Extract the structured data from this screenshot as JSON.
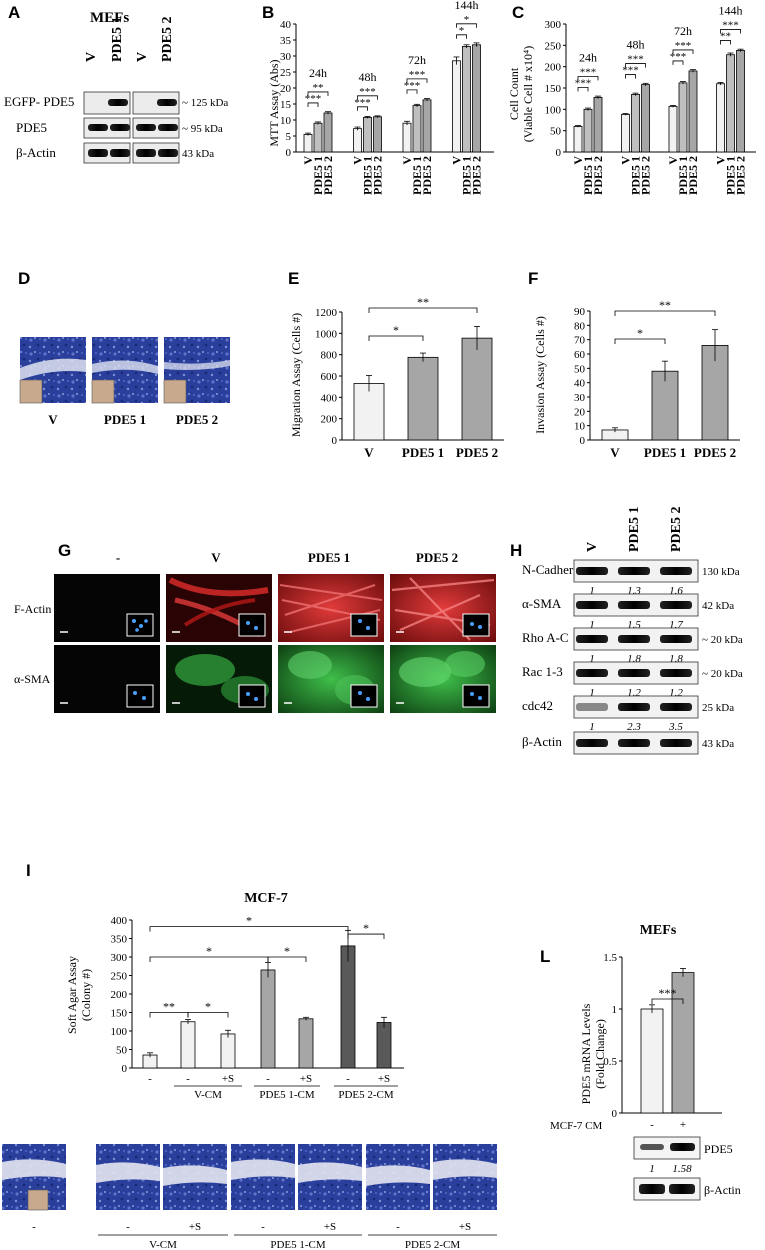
{
  "panels": {
    "A": {
      "letter": "A",
      "title": "MEFs",
      "lanes": [
        "V",
        "PDE5 1",
        "V",
        "PDE5 2"
      ],
      "rows": [
        "EGFP- PDE5",
        "PDE5",
        "β-Actin"
      ],
      "kda": [
        "~ 125 kDa",
        "~ 95 kDa",
        "43 kDa"
      ]
    },
    "B": {
      "letter": "B",
      "chart_data": {
        "type": "bar",
        "ylabel": "MTT Assay (Abs)",
        "ylim": [
          0,
          40
        ],
        "yticks": [
          "0",
          "5",
          "10",
          "15",
          "20",
          "25",
          "30",
          "35",
          "40"
        ],
        "group_labels": [
          "24h",
          "48h",
          "72h",
          "144h"
        ],
        "categories": [
          "V",
          "PDE5 1",
          "PDE5 2"
        ],
        "series": [
          {
            "values": [
              5.5,
              9,
              12.2
            ],
            "errors": [
              0.4,
              0.4,
              0.4
            ]
          },
          {
            "values": [
              7.3,
              10.8,
              11
            ],
            "errors": [
              0.5,
              0.3,
              0.3
            ]
          },
          {
            "values": [
              9,
              14.5,
              16.3
            ],
            "errors": [
              0.6,
              0.4,
              0.4
            ]
          },
          {
            "values": [
              28.5,
              33,
              33.5
            ],
            "errors": [
              1.2,
              0.5,
              0.6
            ]
          }
        ],
        "annotations": [
          {
            "group": 0,
            "from": 0,
            "to": 1,
            "text": "***"
          },
          {
            "group": 0,
            "from": 0,
            "to": 2,
            "text": "**"
          },
          {
            "group": 1,
            "from": 0,
            "to": 1,
            "text": "***"
          },
          {
            "group": 1,
            "from": 0,
            "to": 2,
            "text": "***"
          },
          {
            "group": 2,
            "from": 0,
            "to": 1,
            "text": "***"
          },
          {
            "group": 2,
            "from": 0,
            "to": 2,
            "text": "***"
          },
          {
            "group": 3,
            "from": 0,
            "to": 1,
            "text": "*"
          },
          {
            "group": 3,
            "from": 0,
            "to": 2,
            "text": "*"
          }
        ]
      }
    },
    "C": {
      "letter": "C",
      "chart_data": {
        "type": "bar",
        "ylabel": "Cell Count (Viable Cell # x10⁴)",
        "ylabel_lines": [
          "Cell Count",
          "(Viable Cell # x10⁴)"
        ],
        "ylim": [
          0,
          300
        ],
        "yticks": [
          "0",
          "50",
          "100",
          "150",
          "200",
          "250",
          "300"
        ],
        "group_labels": [
          "24h",
          "48h",
          "72h",
          "144h"
        ],
        "categories": [
          "V",
          "PDE5 1",
          "PDE5 2"
        ],
        "series": [
          {
            "values": [
              60,
              100,
              128
            ],
            "errors": [
              2,
              3,
              3
            ]
          },
          {
            "values": [
              88,
              135,
              158
            ],
            "errors": [
              2,
              3,
              3
            ]
          },
          {
            "values": [
              107,
              162,
              190
            ],
            "errors": [
              2,
              3,
              3
            ]
          },
          {
            "values": [
              160,
              228,
              238
            ],
            "errors": [
              3,
              4,
              3
            ]
          }
        ],
        "annotations": [
          {
            "group": 0,
            "from": 0,
            "to": 1,
            "text": "***"
          },
          {
            "group": 0,
            "from": 0,
            "to": 2,
            "text": "***"
          },
          {
            "group": 1,
            "from": 0,
            "to": 1,
            "text": "***"
          },
          {
            "group": 1,
            "from": 0,
            "to": 2,
            "text": "***"
          },
          {
            "group": 2,
            "from": 0,
            "to": 1,
            "text": "***"
          },
          {
            "group": 2,
            "from": 0,
            "to": 2,
            "text": "***"
          },
          {
            "group": 3,
            "from": 0,
            "to": 1,
            "text": "**"
          },
          {
            "group": 3,
            "from": 0,
            "to": 2,
            "text": "***"
          }
        ]
      }
    },
    "D": {
      "letter": "D",
      "labels": [
        "V",
        "PDE5 1",
        "PDE5 2"
      ]
    },
    "E": {
      "letter": "E",
      "chart_data": {
        "type": "bar",
        "ylabel": "Migration Assay (Cells #)",
        "ylim": [
          0,
          1200
        ],
        "yticks": [
          "0",
          "200",
          "400",
          "600",
          "800",
          "1000",
          "1200"
        ],
        "categories": [
          "V",
          "PDE5 1",
          "PDE5 2"
        ],
        "values": [
          530,
          775,
          955
        ],
        "errors": [
          75,
          40,
          110
        ],
        "colors": [
          "#f2f2f2",
          "#a6a6a6",
          "#a6a6a6"
        ],
        "annotations": [
          {
            "from": 0,
            "to": 1,
            "text": "*"
          },
          {
            "from": 0,
            "to": 2,
            "text": "**"
          }
        ]
      }
    },
    "F": {
      "letter": "F",
      "chart_data": {
        "type": "bar",
        "ylabel": "Invasion Assay (Cells #)",
        "ylim": [
          0,
          90
        ],
        "yticks": [
          "0",
          "10",
          "20",
          "30",
          "40",
          "50",
          "60",
          "70",
          "80",
          "90"
        ],
        "categories": [
          "V",
          "PDE5 1",
          "PDE5 2"
        ],
        "values": [
          7,
          48,
          66
        ],
        "errors": [
          1.5,
          7,
          11
        ],
        "colors": [
          "#f2f2f2",
          "#a6a6a6",
          "#a6a6a6"
        ],
        "annotations": [
          {
            "from": 0,
            "to": 1,
            "text": "*"
          },
          {
            "from": 0,
            "to": 2,
            "text": "**"
          }
        ]
      }
    },
    "G": {
      "letter": "G",
      "columns": [
        "-",
        "V",
        "PDE5 1",
        "PDE5 2"
      ],
      "rows": [
        "F-Actin",
        "α-SMA"
      ]
    },
    "H": {
      "letter": "H",
      "lanes": [
        "V",
        "PDE5 1",
        "PDE5 2"
      ],
      "rows": [
        {
          "label": "N-Cadherin",
          "kda": "130 kDa",
          "quant": [
            "1",
            "1.3",
            "1.6"
          ]
        },
        {
          "label": "α-SMA",
          "kda": "42 kDa",
          "quant": [
            "1",
            "1.5",
            "1.7"
          ]
        },
        {
          "label": "Rho A-C",
          "kda": "~ 20 kDa",
          "quant": [
            "1",
            "1.8",
            "1.8"
          ]
        },
        {
          "label": "Rac 1-3",
          "kda": "~ 20 kDa",
          "quant": [
            "1",
            "1.2",
            "1.2"
          ]
        },
        {
          "label": "cdc42",
          "kda": "25 kDa",
          "quant": [
            "1",
            "2.3",
            "3.5"
          ]
        },
        {
          "label": "β-Actin",
          "kda": "43 kDa",
          "quant": []
        }
      ]
    },
    "I": {
      "letter": "I",
      "chart_data": {
        "type": "bar",
        "title": "MCF-7",
        "ylabel": "Soft Agar Assay (Colony #)",
        "ylabel_lines": [
          "Soft Agar Assay",
          "(Colony #)"
        ],
        "ylim": [
          0,
          400
        ],
        "yticks": [
          "0",
          "50",
          "100",
          "150",
          "200",
          "250",
          "300",
          "350",
          "400"
        ],
        "categories": [
          "-",
          "-",
          "+S",
          "-",
          "+S",
          "-",
          "+S"
        ],
        "groups": [
          "V-CM",
          "PDE5 1-CM",
          "PDE5 2-CM"
        ],
        "values": [
          35,
          125,
          92,
          265,
          133,
          330,
          123
        ],
        "errors": [
          6,
          6,
          10,
          20,
          4,
          42,
          14
        ],
        "colors": [
          "#f2f2f2",
          "#f2f2f2",
          "#f2f2f2",
          "#a6a6a6",
          "#a6a6a6",
          "#595959",
          "#595959"
        ],
        "annotations": [
          {
            "from": 0,
            "to": 1,
            "text": "**",
            "y": 150
          },
          {
            "from": 1,
            "to": 2,
            "text": "*",
            "y": 150
          },
          {
            "from": 0,
            "to": 3,
            "text": "*",
            "y": 300
          },
          {
            "from": 3,
            "to": 4,
            "text": "*",
            "y": 300
          },
          {
            "from": 0,
            "to": 5,
            "text": "*",
            "y": 382
          },
          {
            "from": 5,
            "to": 6,
            "text": "*",
            "y": 362
          }
        ]
      },
      "image_labels": [
        "-",
        "-",
        "+S",
        "-",
        "+S",
        "-",
        "+S"
      ],
      "image_groups": [
        "V-CM",
        "PDE5 1-CM",
        "PDE5 2-CM"
      ]
    },
    "L": {
      "letter": "L",
      "chart_data": {
        "type": "bar",
        "title": "MEFs",
        "ylabel": "PDE5 mRNA Levels (Fold Change)",
        "ylabel_lines": [
          "PDE5 mRNA Levels",
          "(Fold Change)"
        ],
        "ylim": [
          0,
          1.5
        ],
        "yticks": [
          "0",
          "0.5",
          "1",
          "1.5"
        ],
        "categories": [
          "-",
          "+"
        ],
        "xtitle": "MCF-7 CM",
        "values": [
          1.0,
          1.35
        ],
        "errors": [
          0.04,
          0.04
        ],
        "colors": [
          "#f2f2f2",
          "#a6a6a6"
        ],
        "annotations": [
          {
            "from": 0,
            "to": 1,
            "text": "***"
          }
        ]
      },
      "blot_rows": [
        "PDE5",
        "β-Actin"
      ],
      "quant": [
        "1",
        "1.58"
      ]
    }
  }
}
